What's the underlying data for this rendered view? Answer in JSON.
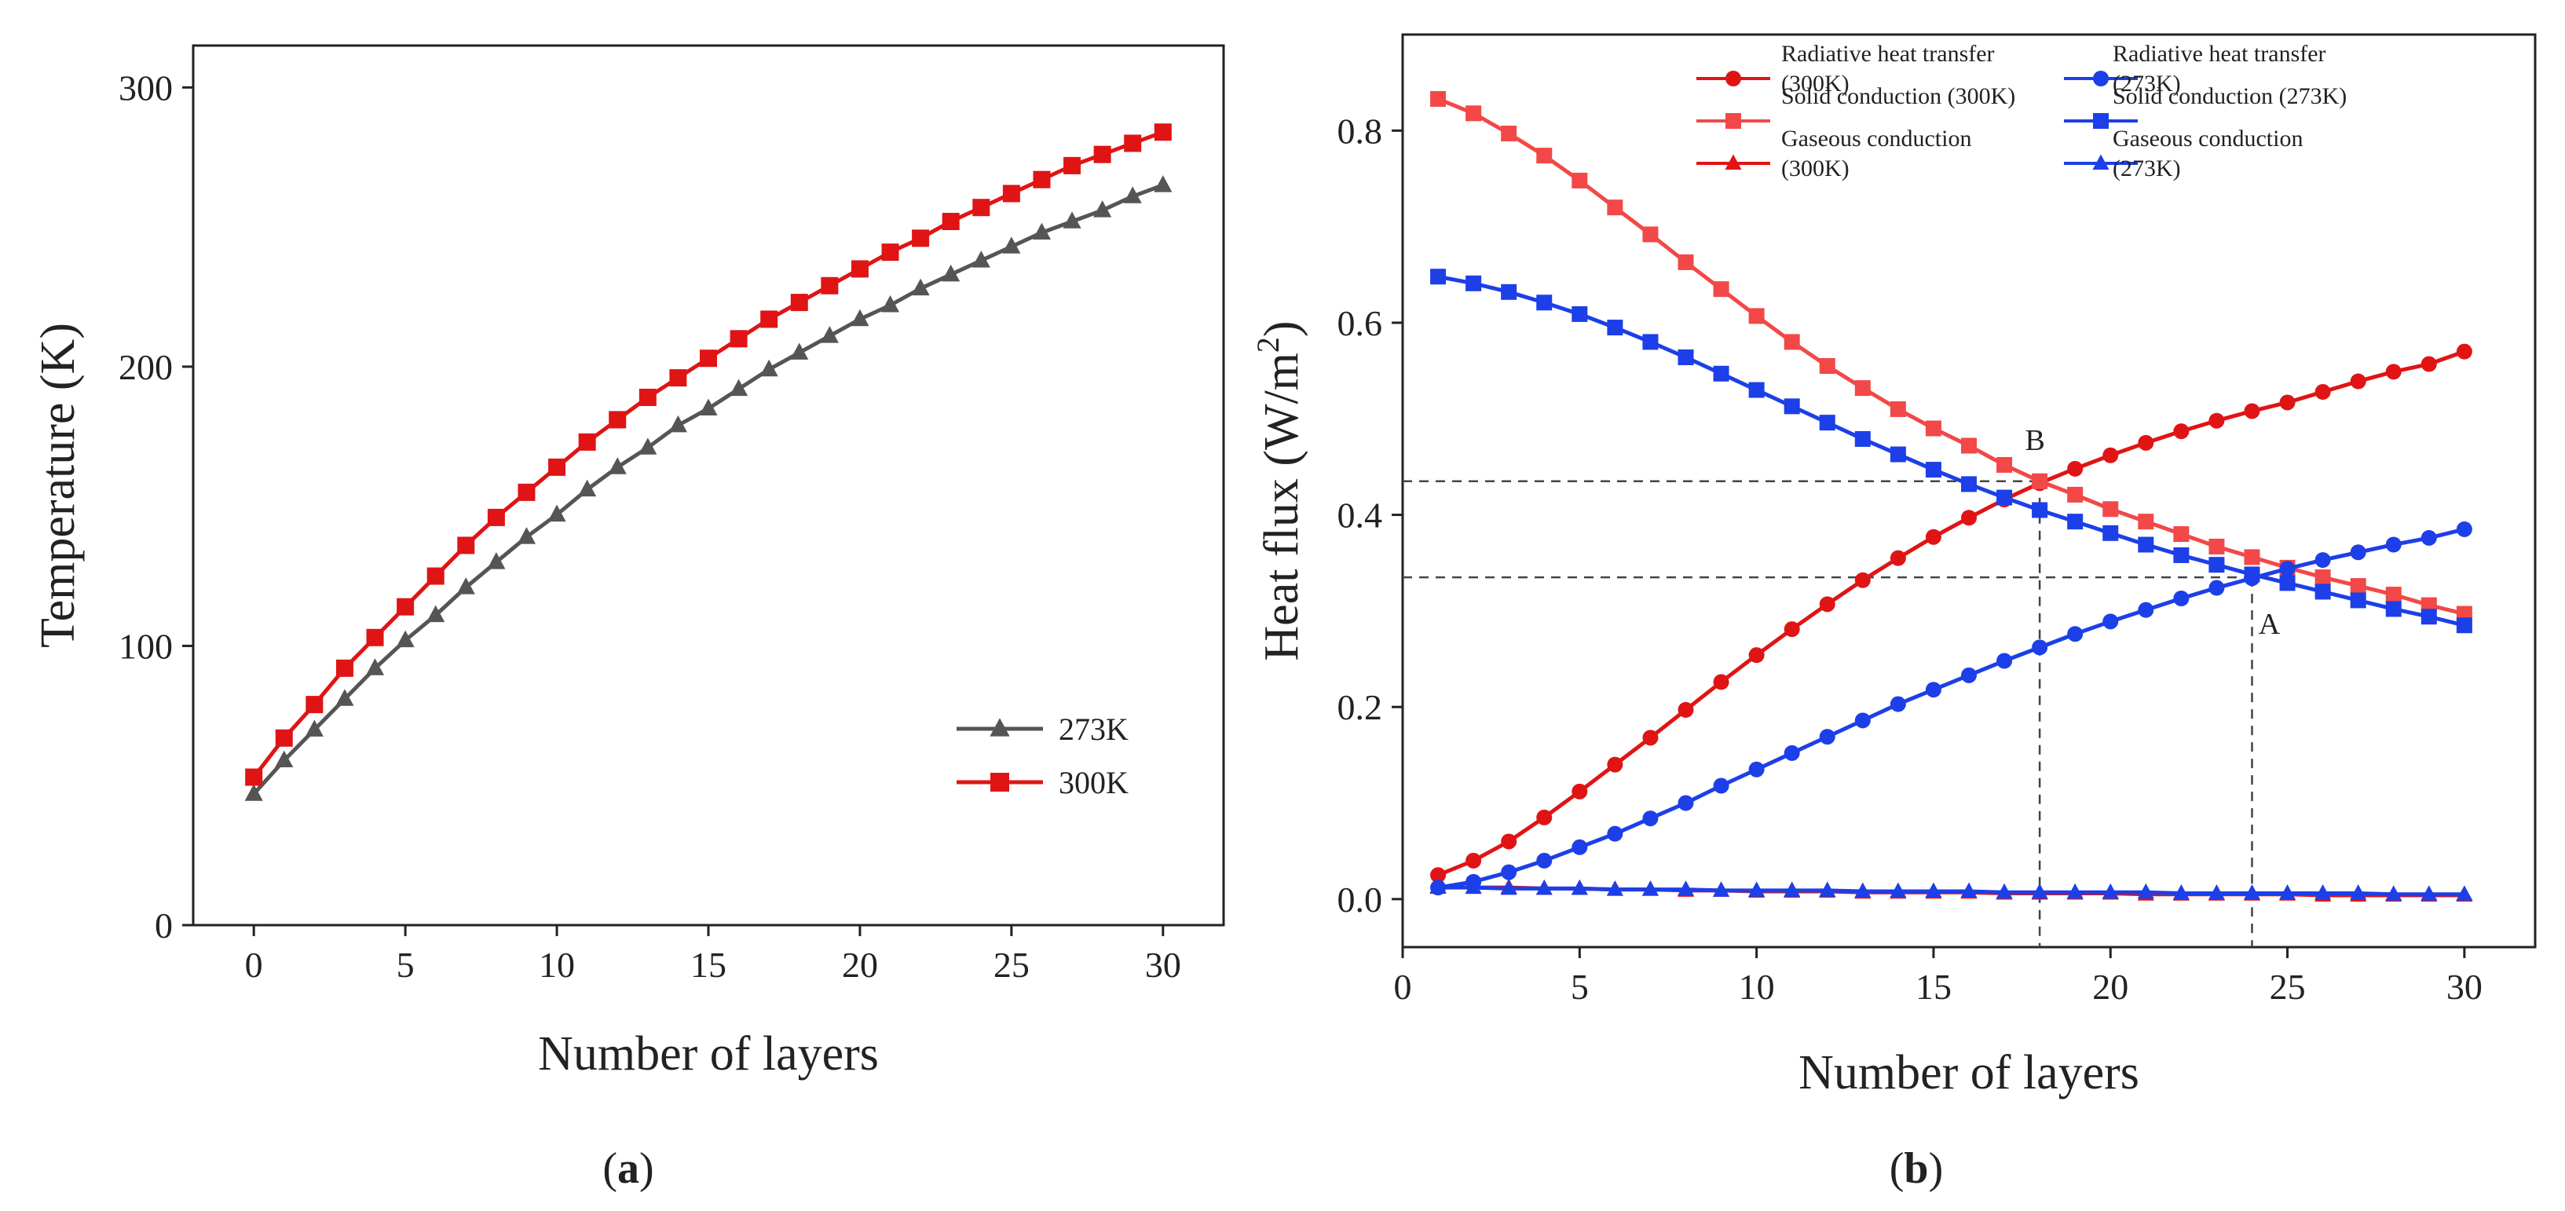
{
  "chart_data": [
    {
      "panel": "a",
      "panel_label": "(a)",
      "panel_letter": "a",
      "type": "line",
      "title": "",
      "xlabel": "Number of layers",
      "ylabel": "Temperature (K)",
      "xlim": [
        -2,
        32
      ],
      "ylim": [
        0,
        315
      ],
      "xticks": [
        0,
        5,
        10,
        15,
        20,
        25,
        30
      ],
      "yticks": [
        0,
        100,
        200,
        300
      ],
      "legend_position": "bottom-right",
      "series": [
        {
          "name": "273K",
          "color": "#555555",
          "marker": "triangle",
          "x": [
            0,
            1,
            2,
            3,
            4,
            5,
            6,
            7,
            8,
            9,
            10,
            11,
            12,
            13,
            14,
            15,
            16,
            17,
            18,
            19,
            20,
            21,
            22,
            23,
            24,
            25,
            26,
            27,
            28,
            29,
            30
          ],
          "y": [
            47,
            59,
            70,
            81,
            92,
            102,
            111,
            121,
            130,
            139,
            147,
            156,
            164,
            171,
            179,
            185,
            192,
            199,
            205,
            211,
            217,
            222,
            228,
            233,
            238,
            243,
            248,
            252,
            256,
            261,
            265
          ]
        },
        {
          "name": "300K",
          "color": "#e01414",
          "marker": "square",
          "x": [
            0,
            1,
            2,
            3,
            4,
            5,
            6,
            7,
            8,
            9,
            10,
            11,
            12,
            13,
            14,
            15,
            16,
            17,
            18,
            19,
            20,
            21,
            22,
            23,
            24,
            25,
            26,
            27,
            28,
            29,
            30
          ],
          "y": [
            53,
            67,
            79,
            92,
            103,
            114,
            125,
            136,
            146,
            155,
            164,
            173,
            181,
            189,
            196,
            203,
            210,
            217,
            223,
            229,
            235,
            241,
            246,
            252,
            257,
            262,
            267,
            272,
            276,
            280,
            284
          ]
        }
      ]
    },
    {
      "panel": "b",
      "panel_label": "(b)",
      "panel_letter": "b",
      "type": "line",
      "title": "",
      "xlabel": "Number of layers",
      "ylabel": "Heat flux (W/m",
      "ylabel_sup": "2",
      "ylabel_close": ")",
      "xlim": [
        0,
        32
      ],
      "ylim": [
        -0.05,
        0.9
      ],
      "xticks": [
        0,
        5,
        10,
        15,
        20,
        25,
        30
      ],
      "yticks": [
        "0.0",
        "0.2",
        "0.4",
        "0.6",
        "0.8"
      ],
      "legend_position": "top",
      "annotations": [
        {
          "text": "B",
          "x": 18,
          "y": 0.435
        },
        {
          "text": "A",
          "x": 24,
          "y": 0.335
        }
      ],
      "reference_lines": [
        {
          "x": 18,
          "y": 0.435
        },
        {
          "x": 24,
          "y": 0.335
        }
      ],
      "series": [
        {
          "name": "Radiative heat transfer (300K)",
          "legend_lines": [
            "Radiative heat transfer",
            "(300K)"
          ],
          "color": "#e01414",
          "marker": "circle",
          "x": [
            1,
            2,
            3,
            4,
            5,
            6,
            7,
            8,
            9,
            10,
            11,
            12,
            13,
            14,
            15,
            16,
            17,
            18,
            19,
            20,
            21,
            22,
            23,
            24,
            25,
            26,
            27,
            28,
            29,
            30
          ],
          "y": [
            0.025,
            0.04,
            0.06,
            0.085,
            0.112,
            0.14,
            0.168,
            0.197,
            0.226,
            0.254,
            0.281,
            0.307,
            0.332,
            0.355,
            0.377,
            0.397,
            0.416,
            0.433,
            0.448,
            0.462,
            0.475,
            0.487,
            0.498,
            0.508,
            0.517,
            0.528,
            0.539,
            0.549,
            0.557,
            0.57
          ]
        },
        {
          "name": "Solid conduction (300K)",
          "legend_lines": [
            "Solid conduction (300K)"
          ],
          "color": "#f24848",
          "marker": "square",
          "x": [
            1,
            2,
            3,
            4,
            5,
            6,
            7,
            8,
            9,
            10,
            11,
            12,
            13,
            14,
            15,
            16,
            17,
            18,
            19,
            20,
            21,
            22,
            23,
            24,
            25,
            26,
            27,
            28,
            29,
            30
          ],
          "y": [
            0.833,
            0.818,
            0.797,
            0.774,
            0.748,
            0.72,
            0.692,
            0.663,
            0.635,
            0.607,
            0.58,
            0.555,
            0.532,
            0.51,
            0.49,
            0.472,
            0.452,
            0.435,
            0.421,
            0.406,
            0.393,
            0.38,
            0.367,
            0.356,
            0.345,
            0.335,
            0.326,
            0.317,
            0.306,
            0.297
          ]
        },
        {
          "name": "Gaseous conduction (300K)",
          "legend_lines": [
            "Gaseous conduction",
            "(300K)"
          ],
          "color": "#e01414",
          "marker": "triangle",
          "x": [
            1,
            2,
            3,
            4,
            5,
            6,
            7,
            8,
            9,
            10,
            11,
            12,
            13,
            14,
            15,
            16,
            17,
            18,
            19,
            20,
            21,
            22,
            23,
            24,
            25,
            26,
            27,
            28,
            29,
            30
          ],
          "y": [
            0.013,
            0.012,
            0.012,
            0.011,
            0.011,
            0.01,
            0.01,
            0.009,
            0.009,
            0.008,
            0.008,
            0.008,
            0.007,
            0.007,
            0.007,
            0.007,
            0.006,
            0.006,
            0.006,
            0.006,
            0.005,
            0.005,
            0.005,
            0.005,
            0.005,
            0.004,
            0.004,
            0.004,
            0.004,
            0.004
          ]
        },
        {
          "name": "Radiative heat transfer (273K)",
          "legend_lines": [
            "Radiative heat transfer",
            "(273K)"
          ],
          "color": "#1c3fe8",
          "marker": "circle",
          "x": [
            1,
            2,
            3,
            4,
            5,
            6,
            7,
            8,
            9,
            10,
            11,
            12,
            13,
            14,
            15,
            16,
            17,
            18,
            19,
            20,
            21,
            22,
            23,
            24,
            25,
            26,
            27,
            28,
            29,
            30
          ],
          "y": [
            0.012,
            0.018,
            0.028,
            0.04,
            0.054,
            0.068,
            0.084,
            0.1,
            0.118,
            0.135,
            0.152,
            0.169,
            0.186,
            0.203,
            0.218,
            0.233,
            0.248,
            0.262,
            0.276,
            0.289,
            0.301,
            0.313,
            0.324,
            0.334,
            0.344,
            0.353,
            0.361,
            0.369,
            0.376,
            0.385
          ]
        },
        {
          "name": "Solid conduction (273K)",
          "legend_lines": [
            "Solid conduction (273K)"
          ],
          "color": "#1c3fe8",
          "marker": "square",
          "x": [
            1,
            2,
            3,
            4,
            5,
            6,
            7,
            8,
            9,
            10,
            11,
            12,
            13,
            14,
            15,
            16,
            17,
            18,
            19,
            20,
            21,
            22,
            23,
            24,
            25,
            26,
            27,
            28,
            29,
            30
          ],
          "y": [
            0.648,
            0.641,
            0.632,
            0.621,
            0.609,
            0.595,
            0.58,
            0.564,
            0.547,
            0.53,
            0.513,
            0.496,
            0.479,
            0.463,
            0.447,
            0.432,
            0.418,
            0.405,
            0.393,
            0.381,
            0.369,
            0.358,
            0.348,
            0.338,
            0.329,
            0.32,
            0.311,
            0.302,
            0.294,
            0.285
          ]
        },
        {
          "name": "Gaseous conduction (273K)",
          "legend_lines": [
            "Gaseous conduction",
            "(273K)"
          ],
          "color": "#1c3fe8",
          "marker": "triangle",
          "x": [
            1,
            2,
            3,
            4,
            5,
            6,
            7,
            8,
            9,
            10,
            11,
            12,
            13,
            14,
            15,
            16,
            17,
            18,
            19,
            20,
            21,
            22,
            23,
            24,
            25,
            26,
            27,
            28,
            29,
            30
          ],
          "y": [
            0.012,
            0.012,
            0.011,
            0.011,
            0.011,
            0.01,
            0.01,
            0.01,
            0.009,
            0.009,
            0.009,
            0.009,
            0.008,
            0.008,
            0.008,
            0.008,
            0.007,
            0.007,
            0.007,
            0.007,
            0.007,
            0.006,
            0.006,
            0.006,
            0.006,
            0.006,
            0.006,
            0.005,
            0.005,
            0.005
          ]
        }
      ]
    }
  ]
}
